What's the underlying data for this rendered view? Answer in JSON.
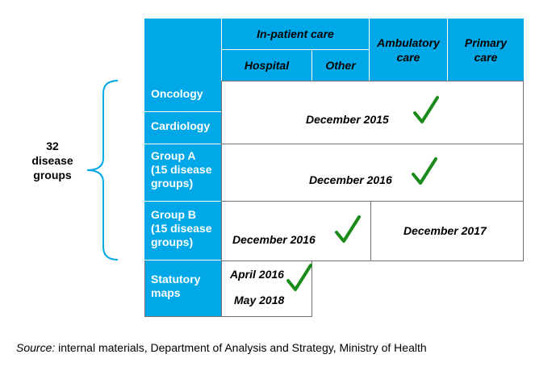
{
  "left_label": {
    "line1": "32",
    "line2": "disease",
    "line3": "groups"
  },
  "header": {
    "inpatient": "In-patient care",
    "hospital": "Hospital",
    "other": "Other",
    "ambulatory_line1": "Ambulatory",
    "ambulatory_line2": "care",
    "primary_line1": "Primary",
    "primary_line2": "care"
  },
  "rows": {
    "oncology": "Oncology",
    "cardiology": "Cardiology",
    "group_a": [
      "Group A",
      "(15 disease",
      "groups)"
    ],
    "group_b": [
      "Group B",
      "(15 disease",
      "groups)"
    ],
    "statutory": [
      "Statutory",
      "maps"
    ]
  },
  "dates": {
    "onc_card": "December 2015",
    "group_a": "December 2016",
    "group_b_left": "December 2016",
    "group_b_right": "December 2017",
    "stat_1": "April 2016",
    "stat_2": "May 2018"
  },
  "source": {
    "label": "Source:",
    "text": " internal materials, Department of Analysis and Strategy, Ministry of Health"
  },
  "colors": {
    "header_fill": "#00a8e8",
    "check": "#1a8a1a",
    "border": "#707070"
  }
}
